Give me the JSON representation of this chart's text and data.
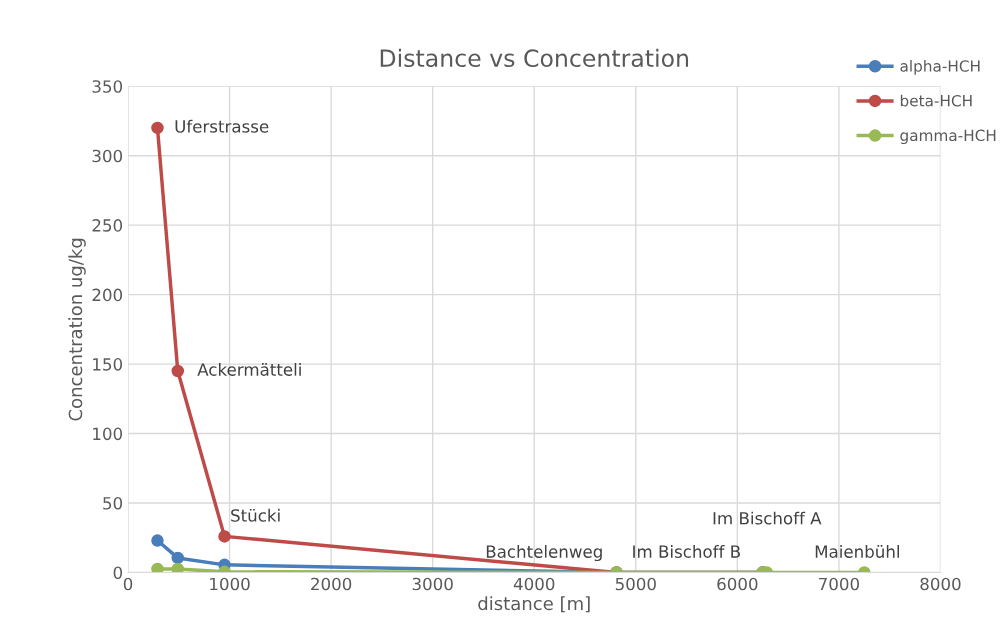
{
  "chart_data": {
    "type": "line",
    "title": "Distance vs Concentration",
    "xlabel": "distance [m]",
    "ylabel": "Concentration ug/kg",
    "x": [
      290,
      490,
      950,
      4810,
      6250,
      6290,
      7250
    ],
    "series": [
      {
        "name": "alpha-HCH",
        "color": "#4a7ebb",
        "values": [
          23,
          10.5,
          5.5,
          0,
          0,
          null,
          null
        ]
      },
      {
        "name": "beta-HCH",
        "color": "#be4b48",
        "values": [
          320,
          145,
          26,
          0,
          0,
          null,
          null
        ]
      },
      {
        "name": "gamma-HCH",
        "color": "#98b954",
        "values": [
          2.5,
          2.5,
          0.5,
          0,
          0,
          0,
          0
        ]
      }
    ],
    "annotations": [
      {
        "text": "Uferstrasse",
        "x": 290,
        "y": 320
      },
      {
        "text": "Ackermätteli",
        "x": 490,
        "y": 145
      },
      {
        "text": "Stücki",
        "x": 950,
        "y": 26
      },
      {
        "text": "Bachtelenweg",
        "x": 4810,
        "y": 0
      },
      {
        "text": "Im Bischoff B",
        "x": 6250,
        "y": 0
      },
      {
        "text": "Im Bischoff A",
        "x": 6290,
        "y": 0
      },
      {
        "text": "Maienbühl",
        "x": 7250,
        "y": 0
      }
    ],
    "xlim": [
      0,
      8000
    ],
    "xticks": [
      0,
      1000,
      2000,
      3000,
      4000,
      5000,
      6000,
      7000,
      8000
    ],
    "ylim": [
      0,
      350
    ],
    "yticks": [
      0,
      50,
      100,
      150,
      200,
      250,
      300,
      350
    ],
    "grid": true,
    "legend": "top right",
    "marker": "circle",
    "line_style": "solid"
  }
}
